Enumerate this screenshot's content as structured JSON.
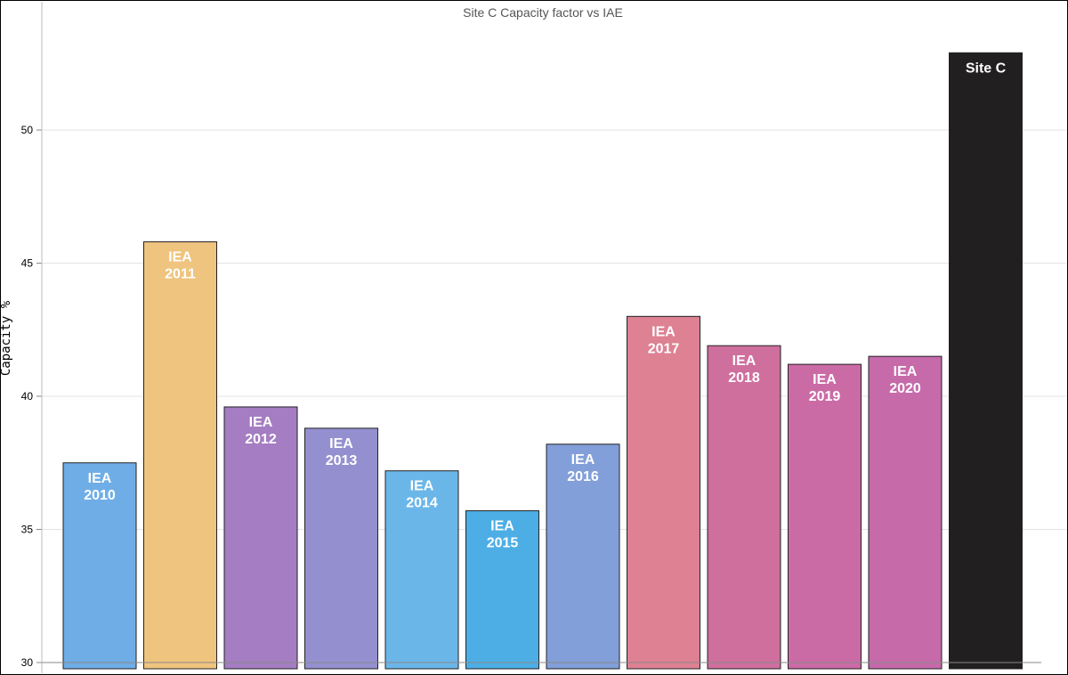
{
  "chart_data": {
    "type": "bar",
    "title": "Site C Capacity factor vs IAE",
    "ylabel": "Capacity %",
    "xlabel": "",
    "ylim": [
      30,
      53.5
    ],
    "yticks": [
      30,
      35,
      40,
      45,
      50
    ],
    "grid": true,
    "bars": [
      {
        "label": [
          "IEA",
          "2010"
        ],
        "value": 37.5,
        "color": "#6fade6"
      },
      {
        "label": [
          "IEA",
          "2011"
        ],
        "value": 45.8,
        "color": "#efc47e"
      },
      {
        "label": [
          "IEA",
          "2012"
        ],
        "value": 39.6,
        "color": "#a57dc2"
      },
      {
        "label": [
          "IEA",
          "2013"
        ],
        "value": 38.8,
        "color": "#9490d0"
      },
      {
        "label": [
          "IEA",
          "2014"
        ],
        "value": 37.2,
        "color": "#6bb6e9"
      },
      {
        "label": [
          "IEA",
          "2015"
        ],
        "value": 35.7,
        "color": "#4daee5"
      },
      {
        "label": [
          "IEA",
          "2016"
        ],
        "value": 38.2,
        "color": "#829fd9"
      },
      {
        "label": [
          "IEA",
          "2017"
        ],
        "value": 43.0,
        "color": "#de8193"
      },
      {
        "label": [
          "IEA",
          "2018"
        ],
        "value": 41.9,
        "color": "#cf6f9e"
      },
      {
        "label": [
          "IEA",
          "2019"
        ],
        "value": 41.2,
        "color": "#cb6ba6"
      },
      {
        "label": [
          "IEA",
          "2020"
        ],
        "value": 41.5,
        "color": "#c66aaa"
      },
      {
        "label": [
          "Site C"
        ],
        "value": 52.9,
        "color": "#221f20"
      }
    ]
  }
}
